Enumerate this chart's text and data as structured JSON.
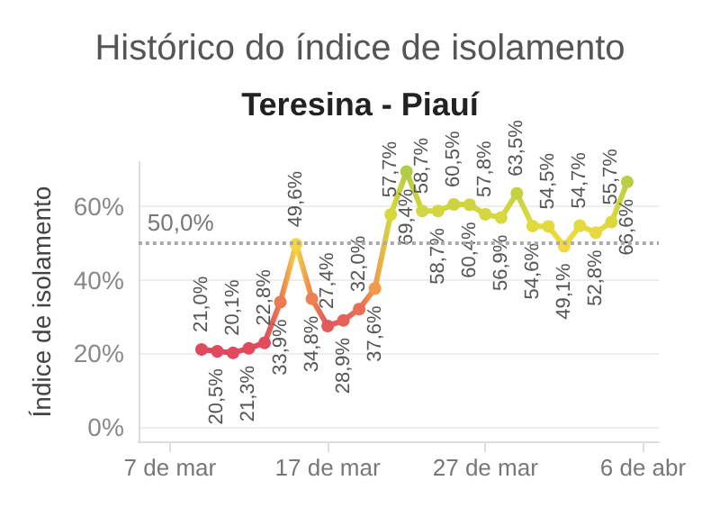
{
  "chart_data": {
    "type": "line",
    "title": "Histórico do índice de isolamento",
    "subtitle": "Teresina - Piauí",
    "ylabel": "Índice de isolamento",
    "x": [
      "--03-09",
      "--03-10",
      "--03-11",
      "--03-12",
      "--03-13",
      "--03-14",
      "--03-15",
      "--03-16",
      "--03-17",
      "--03-18",
      "--03-19",
      "--03-20",
      "--03-21",
      "--03-22",
      "--03-23",
      "--03-24",
      "--03-25",
      "--03-26",
      "--03-27",
      "--03-28",
      "--03-29",
      "--03-30",
      "--03-31",
      "--04-01",
      "--04-02",
      "--04-03",
      "--04-04",
      "--04-05"
    ],
    "series": [
      {
        "values": [
          21.0,
          20.5,
          20.1,
          21.3,
          22.8,
          33.9,
          49.6,
          34.8,
          27.4,
          28.9,
          32.0,
          37.6,
          57.7,
          69.4,
          58.7,
          58.7,
          60.5,
          60.4,
          57.8,
          56.9,
          63.5,
          54.6,
          54.5,
          49.1,
          54.7,
          52.8,
          55.7,
          66.6
        ],
        "value_labels": [
          "21,0%",
          "20,5%",
          "20,1%",
          "21,3%",
          "22,8%",
          "33,9%",
          "49,6%",
          "34,8%",
          "27,4%",
          "28,9%",
          "32,0%",
          "37,6%",
          "57,7%",
          "69,4%",
          "58,7%",
          "58,7%",
          "60,5%",
          "60,4%",
          "57,8%",
          "56,9%",
          "63,5%",
          "54,6%",
          "54,5%",
          "49,1%",
          "54,7%",
          "52,8%",
          "55,7%",
          "66,6%"
        ],
        "colors": [
          "#e0495e",
          "#e0495e",
          "#e0495e",
          "#e0495e",
          "#e14c5c",
          "#ec7a52",
          "#f6d545",
          "#ec8052",
          "#e35a5a",
          "#e5615a",
          "#e86f56",
          "#f09a4e",
          "#d7d83f",
          "#b3cc45",
          "#d2d640",
          "#d2d640",
          "#cdd440",
          "#cdd440",
          "#d4d740",
          "#d8d83f",
          "#c4d242",
          "#e2da3e",
          "#e2da3e",
          "#f3d841",
          "#e2da3e",
          "#e8d93e",
          "#dcd93f",
          "#b9ce44"
        ]
      }
    ],
    "xlim": [
      "--03-05",
      "--04-07"
    ],
    "xticks": [
      {
        "value": "--03-07",
        "label": "7 de mar"
      },
      {
        "value": "--03-17",
        "label": "17 de mar"
      },
      {
        "value": "--03-27",
        "label": "27 de mar"
      },
      {
        "value": "--04-06",
        "label": "6 de abr"
      }
    ],
    "ylim": [
      -4,
      72
    ],
    "yticks": [
      {
        "value": 0,
        "label": "0%"
      },
      {
        "value": 20,
        "label": "20%"
      },
      {
        "value": 40,
        "label": "40%"
      },
      {
        "value": 60,
        "label": "60%"
      }
    ],
    "ref_lines": [
      {
        "axis": "y",
        "value": 50,
        "label": "50,0%",
        "color": "#aaaaaa",
        "line_style": "dotted"
      }
    ],
    "grid": "y",
    "marker": "circle"
  }
}
